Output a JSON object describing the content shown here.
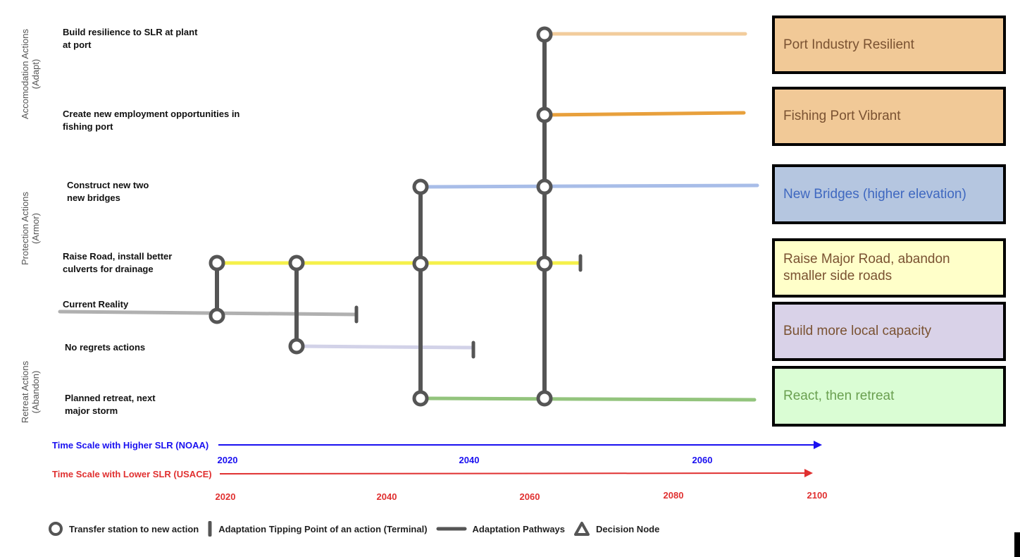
{
  "categories": {
    "accommodation": "Accomodation Actions\n(Adapt)",
    "protection": "Protection Actions\n(Armor)",
    "retreat": "Retreat Actions\n(Abandon)"
  },
  "actions": {
    "build_resilience": "Build resilience to SLR at plant at port",
    "employment": "Create new employment opportunities in fishing port",
    "bridges": "Construct new two new bridges",
    "raise_road": "Raise Road, install better culverts for drainage",
    "current": "Current Reality",
    "no_regrets": "No regrets actions",
    "planned_retreat": "Planned retreat, next major storm"
  },
  "outcomes": {
    "port_industry": "Port Industry Resilient",
    "fishing_port": "Fishing Port Vibrant",
    "new_bridges": "New Bridges (higher elevation)",
    "raise_major_road": "Raise Major Road, abandon smaller side roads",
    "local_capacity": "Build more local capacity",
    "react_retreat": "React, then retreat"
  },
  "colors": {
    "port_industry": "#f2cc9c",
    "fishing_port": "#e8a03c",
    "new_bridges": "#a8bde8",
    "raise_road": "#f5f04a",
    "current": "#b0b0b0",
    "no_regrets": "#d2d2e8",
    "planned_retreat": "#93c47d",
    "node": "#555555",
    "box_port": "#f1c997",
    "box_fishing": "#f1c997",
    "box_bridges": "#b5c6e0",
    "box_road": "#ffffc9",
    "box_capacity": "#d9d2e8",
    "box_retreat": "#dafdd4",
    "text_port": "#7a5232",
    "text_fishing": "#7a5232",
    "text_bridges": "#3f68c0",
    "text_road": "#7a5232",
    "text_capacity": "#7a5232",
    "text_retreat": "#6aa050",
    "scale_high": "#1a10f0",
    "scale_low": "#e03030"
  },
  "timescales": {
    "high": {
      "label": "Time Scale with Higher SLR (NOAA)",
      "ticks": [
        "2020",
        "2040",
        "2060"
      ]
    },
    "low": {
      "label": "Time Scale with Lower SLR (USACE)",
      "ticks": [
        "2020",
        "2040",
        "2060",
        "2080",
        "2100"
      ]
    }
  },
  "legend": {
    "transfer": "Transfer station to new action",
    "tipping": "Adaptation Tipping Point of an action (Terminal)",
    "pathways": "Adaptation Pathways",
    "decision": "Decision Node"
  }
}
